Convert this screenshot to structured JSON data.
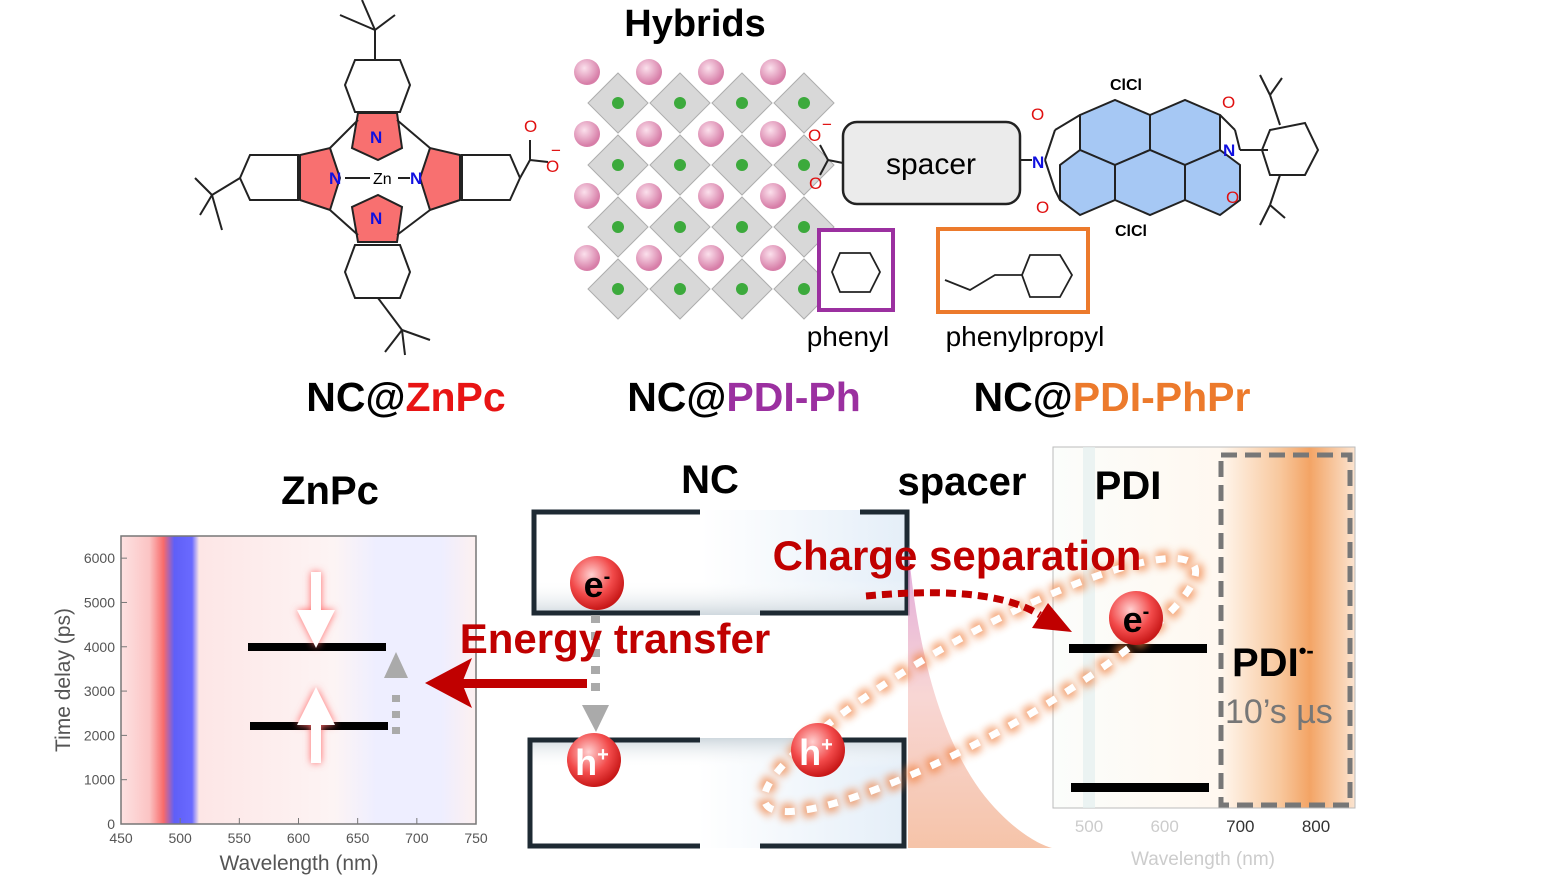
{
  "top": {
    "hybrids_title": "Hybrids",
    "spacer_label": "spacer",
    "phenyl_label": "phenyl",
    "phenylpropyl_label": "phenylpropyl",
    "atoms": {
      "N": "N",
      "Zn": "Zn",
      "O": "O",
      "O_minus": "−",
      "ClCl": "ClCl"
    },
    "samples": [
      {
        "prefix": "NC@",
        "name": "ZnPc",
        "color": "#e81414"
      },
      {
        "prefix": "NC@",
        "name": "PDI-Ph",
        "color": "#9b30a0"
      },
      {
        "prefix": "NC@",
        "name": "PDI-PhPr",
        "color": "#ec7a2c"
      }
    ],
    "colors": {
      "phenyl_box": "#9b30a0",
      "phenylpropyl_box": "#ec7a2c",
      "pyrrole": "#f87070",
      "pdi_core": "#a6c8f4"
    }
  },
  "bottom": {
    "znpc_label": "ZnPc",
    "nc_label": "NC",
    "spacer_label": "spacer",
    "pdi_label": "PDI",
    "energy_transfer": "Energy transfer",
    "charge_separation": "Charge separation",
    "electron": "e",
    "hole": "h",
    "minus": "-",
    "plus": "+",
    "pdi_anion": "PDI",
    "pdi_anion_sup": "•-",
    "lifetime": "10’s µs",
    "accent_red": "#c00000"
  },
  "left_plot": {
    "xlabel": "Wavelength (nm)",
    "ylabel": "Time delay (ps)",
    "xticks": [
      "450",
      "500",
      "550",
      "600",
      "650",
      "700",
      "750"
    ],
    "yticks": [
      "0",
      "1000",
      "2000",
      "3000",
      "4000",
      "5000",
      "6000"
    ],
    "xlim": [
      450,
      750
    ],
    "ylim": [
      0,
      6500
    ]
  },
  "right_plot": {
    "xlabel": "Wavelength (nm)",
    "xticks": [
      "500",
      "600",
      "700",
      "800"
    ]
  }
}
